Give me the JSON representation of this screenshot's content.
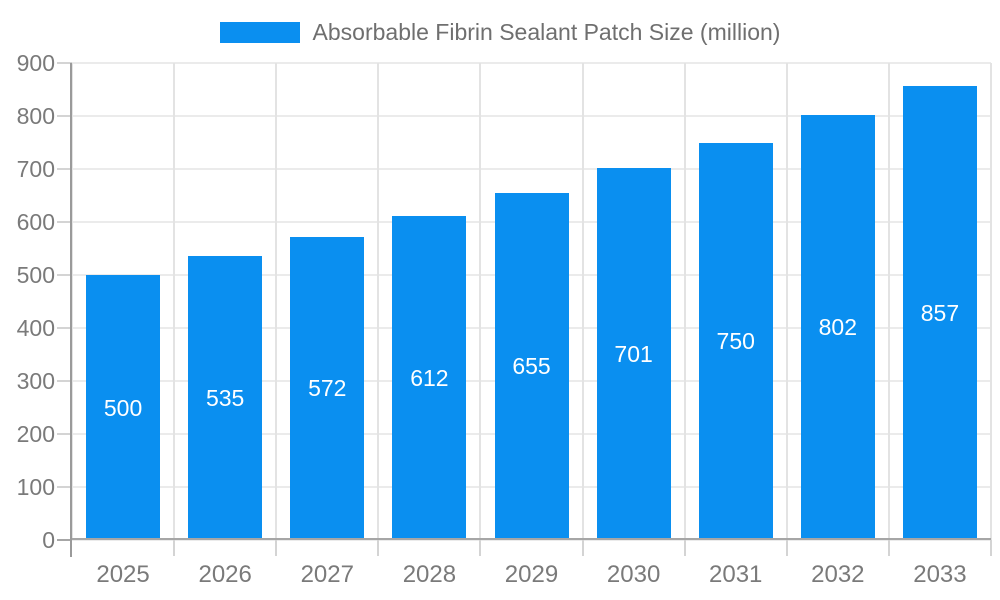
{
  "legend": {
    "label": "Absorbable Fibrin Sealant Patch Size (million)"
  },
  "chart_data": {
    "type": "bar",
    "title": "Absorbable Fibrin Sealant Patch Size (million)",
    "categories": [
      "2025",
      "2026",
      "2027",
      "2028",
      "2029",
      "2030",
      "2031",
      "2032",
      "2033"
    ],
    "values": [
      500,
      535,
      572,
      612,
      655,
      701,
      750,
      802,
      857
    ],
    "value_labels": [
      "500",
      "535",
      "572",
      "612",
      "655",
      "701",
      "750",
      "802",
      "857"
    ],
    "y_ticks": [
      "0",
      "100",
      "200",
      "300",
      "400",
      "500",
      "600",
      "700",
      "800",
      "900"
    ],
    "ylim": [
      0,
      900
    ],
    "xlabel": "",
    "ylabel": "",
    "grid": true,
    "legend_position": "top-center",
    "colors": {
      "bar": "#0a8ff0",
      "bar_value_text": "#ffffff",
      "grid_h": "#ebebeb",
      "grid_v": "#e3e3e3",
      "tick": "#d4d4d4",
      "y_axis_line": "#9a9a9a",
      "x_axis_line": "#a6a6a6",
      "axis_text": "#7a7a7a",
      "legend_text": "#6f6f6f",
      "background": "#ffffff"
    }
  }
}
